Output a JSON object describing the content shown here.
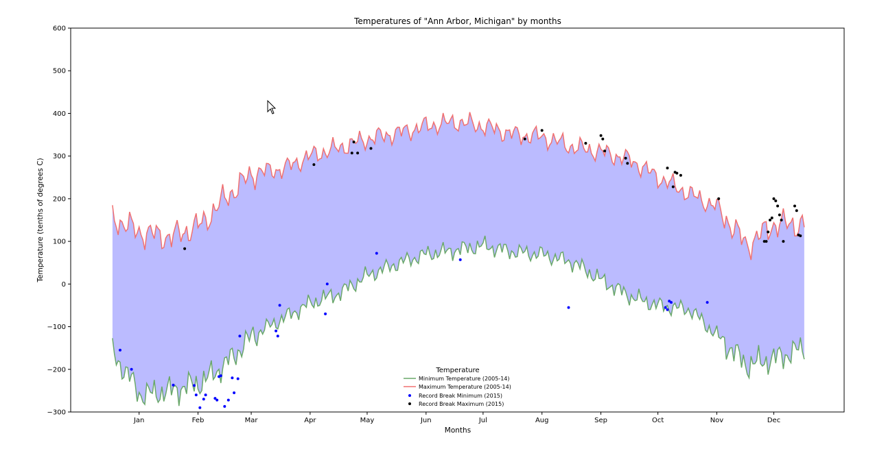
{
  "chart_data": {
    "type": "line",
    "title": "Temperatures of \"Ann Arbor, Michigan\" by months",
    "xlabel": "Months",
    "ylabel": "Temperature (tenths of degrees C)",
    "x_ticks": [
      "Jan",
      "Feb",
      "Mar",
      "Apr",
      "May",
      "Jun",
      "Jul",
      "Aug",
      "Sep",
      "Oct",
      "Nov",
      "Dec"
    ],
    "ylim": [
      -300,
      600
    ],
    "y_ticks": [
      -300,
      -200,
      -100,
      0,
      100,
      200,
      300,
      400,
      500,
      600
    ],
    "grid": false,
    "fill_between": {
      "color": "#bbbbff"
    },
    "legend": {
      "title": "Temperature",
      "placement": "lower-center"
    },
    "series": [
      {
        "name": "Minimum Temperature (2005-14)",
        "type": "line",
        "color": "#6aa86a",
        "x": [
          1,
          16,
          32,
          48,
          60,
          75,
          91,
          105,
          121,
          135,
          152,
          166,
          182,
          196,
          213,
          227,
          244,
          258,
          274,
          288,
          305,
          319,
          335,
          349,
          365
        ],
        "y": [
          -160,
          -260,
          -250,
          -230,
          -190,
          -120,
          -80,
          -45,
          -20,
          20,
          50,
          70,
          80,
          90,
          75,
          70,
          50,
          10,
          -30,
          -50,
          -60,
          -120,
          -190,
          -175,
          -150
        ]
      },
      {
        "name": "Maximum Temperature (2005-14)",
        "type": "line",
        "color": "#f07070",
        "x": [
          1,
          16,
          32,
          48,
          60,
          75,
          91,
          105,
          121,
          135,
          152,
          166,
          182,
          196,
          213,
          227,
          244,
          258,
          274,
          288,
          305,
          319,
          335,
          349,
          365
        ],
        "y": [
          155,
          120,
          110,
          140,
          200,
          260,
          270,
          300,
          320,
          340,
          355,
          370,
          380,
          370,
          350,
          345,
          320,
          310,
          290,
          250,
          210,
          180,
          90,
          140,
          140
        ]
      },
      {
        "name": "Record Break Minimum (2015)",
        "type": "scatter",
        "color": "#0000ff",
        "x": [
          5,
          11,
          33,
          44,
          45,
          47,
          49,
          50,
          55,
          56,
          57,
          58,
          60,
          62,
          64,
          65,
          67,
          68,
          87,
          88,
          89,
          113,
          114,
          140,
          184,
          241,
          292,
          293,
          294,
          295,
          314
        ],
        "y": [
          -155,
          -200,
          -237,
          -238,
          -260,
          -290,
          -270,
          -260,
          -268,
          -272,
          -217,
          -215,
          -287,
          -272,
          -220,
          -255,
          -222,
          -122,
          -110,
          -122,
          -50,
          -70,
          0,
          72,
          57,
          -55,
          -55,
          -60,
          -40,
          -43,
          -43
        ]
      },
      {
        "name": "Record Break Maximum (2015)",
        "type": "scatter",
        "color": "#000000",
        "x": [
          39,
          107,
          127,
          128,
          130,
          137,
          218,
          227,
          250,
          258,
          259,
          260,
          271,
          272,
          293,
          296,
          297,
          298,
          300,
          320,
          344,
          345,
          346,
          347,
          348,
          349,
          350,
          351,
          352,
          353,
          354,
          360,
          361,
          362,
          363
        ],
        "y": [
          83,
          280,
          307,
          333,
          307,
          318,
          340,
          360,
          330,
          348,
          340,
          312,
          295,
          283,
          272,
          228,
          262,
          260,
          255,
          200,
          100,
          100,
          122,
          150,
          155,
          200,
          195,
          183,
          162,
          150,
          100,
          183,
          172,
          115,
          113
        ]
      }
    ]
  }
}
